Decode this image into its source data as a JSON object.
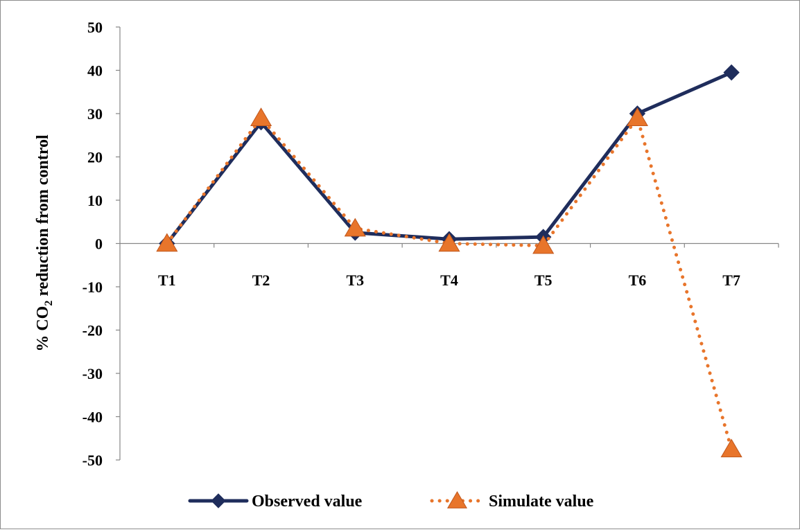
{
  "chart_data": {
    "type": "line",
    "categories": [
      "T1",
      "T2",
      "T3",
      "T4",
      "T5",
      "T6",
      "T7"
    ],
    "series": [
      {
        "name": "Observed value",
        "values": [
          0,
          28,
          2.5,
          1,
          1.5,
          30,
          39.5
        ],
        "color": "#1f2d5c",
        "marker": "diamond",
        "line_style": "solid"
      },
      {
        "name": "Simulate value",
        "values": [
          0,
          29,
          3.5,
          0,
          -0.5,
          29,
          -47.5
        ],
        "color": "#e8752b",
        "marker": "triangle",
        "line_style": "dotted"
      }
    ],
    "ylabel_prefix": "% CO",
    "ylabel_subscript": "2",
    "ylabel_suffix": " reduction from control",
    "ylim": [
      -50,
      50
    ],
    "yticks": [
      50,
      40,
      30,
      20,
      10,
      0,
      -10,
      -20,
      -30,
      -40,
      -50
    ],
    "grid": false,
    "legend_position": "bottom"
  }
}
